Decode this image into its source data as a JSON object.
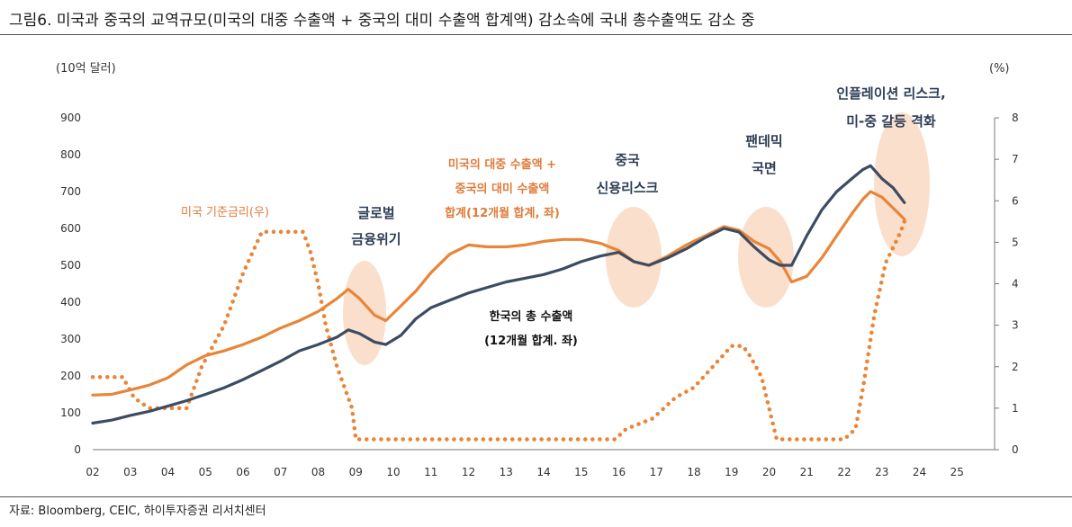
{
  "title": "그림6.   미국과 중국의 교역규모(미국의 대중 수출액 + 중국의 대미 수출액 합계액) 감소속에 국내 총수출액도 감소 중",
  "source": "자료: Bloomberg, CEIC, 하이투자증권 리서치센터",
  "colors": {
    "korea_exports": "#3d4b63",
    "us_china_trade": "#e88538",
    "fed_rate": "#e88538",
    "highlight": "#f9dcc8"
  },
  "chart_data": {
    "type": "line",
    "left_unit": "(10억 달러)",
    "right_unit": "(%)",
    "ylim_left": [
      0,
      900
    ],
    "ylim_right": [
      0,
      8
    ],
    "yticks_left": [
      "0",
      "100",
      "200",
      "300",
      "400",
      "500",
      "600",
      "700",
      "800",
      "900"
    ],
    "yticks_right": [
      "0",
      "1",
      "2",
      "3",
      "4",
      "5",
      "6",
      "7",
      "8"
    ],
    "xlim": [
      2002,
      2026
    ],
    "xticks": [
      "02",
      "03",
      "04",
      "05",
      "06",
      "07",
      "08",
      "09",
      "10",
      "11",
      "12",
      "13",
      "14",
      "15",
      "16",
      "17",
      "18",
      "19",
      "20",
      "21",
      "22",
      "23",
      "24",
      "25"
    ],
    "series": [
      {
        "name": "한국의 총 수출액 (12개월 합계. 좌)",
        "axis": "left",
        "x": [
          2002.0,
          2002.5,
          2003.0,
          2003.5,
          2004.0,
          2004.5,
          2005.0,
          2005.5,
          2006.0,
          2006.5,
          2007.0,
          2007.5,
          2008.0,
          2008.5,
          2008.8,
          2009.1,
          2009.5,
          2009.8,
          2010.2,
          2010.6,
          2011.0,
          2011.5,
          2012.0,
          2012.5,
          2013.0,
          2013.5,
          2014.0,
          2014.5,
          2015.0,
          2015.5,
          2016.0,
          2016.4,
          2016.8,
          2017.3,
          2017.8,
          2018.3,
          2018.8,
          2019.2,
          2019.6,
          2020.0,
          2020.3,
          2020.6,
          2021.0,
          2021.4,
          2021.8,
          2022.2,
          2022.5,
          2022.7,
          2023.0,
          2023.3,
          2023.6
        ],
        "values": [
          72,
          80,
          93,
          104,
          118,
          133,
          150,
          168,
          190,
          215,
          240,
          268,
          285,
          305,
          325,
          315,
          292,
          285,
          310,
          355,
          385,
          405,
          425,
          440,
          455,
          465,
          475,
          490,
          510,
          525,
          535,
          510,
          500,
          520,
          545,
          575,
          600,
          590,
          550,
          515,
          500,
          500,
          580,
          650,
          700,
          735,
          760,
          770,
          735,
          710,
          670
        ]
      },
      {
        "name": "미국의 대중 수출액 + 중국의 대미 수출액 합계(12개월 합계, 좌)",
        "axis": "left",
        "x": [
          2002.0,
          2002.5,
          2003.0,
          2003.5,
          2004.0,
          2004.5,
          2005.0,
          2005.5,
          2006.0,
          2006.5,
          2007.0,
          2007.5,
          2008.0,
          2008.5,
          2008.8,
          2009.1,
          2009.5,
          2009.8,
          2010.2,
          2010.6,
          2011.0,
          2011.5,
          2012.0,
          2012.5,
          2013.0,
          2013.5,
          2014.0,
          2014.5,
          2015.0,
          2015.5,
          2016.0,
          2016.4,
          2016.8,
          2017.3,
          2017.8,
          2018.3,
          2018.8,
          2019.2,
          2019.6,
          2020.0,
          2020.3,
          2020.6,
          2021.0,
          2021.4,
          2021.8,
          2022.2,
          2022.5,
          2022.7,
          2023.0,
          2023.3,
          2023.6
        ],
        "values": [
          148,
          150,
          162,
          175,
          195,
          230,
          255,
          268,
          285,
          305,
          330,
          350,
          375,
          410,
          435,
          410,
          365,
          350,
          390,
          430,
          480,
          530,
          555,
          550,
          550,
          555,
          565,
          570,
          570,
          560,
          540,
          510,
          500,
          525,
          555,
          580,
          605,
          595,
          565,
          545,
          510,
          455,
          470,
          520,
          580,
          640,
          680,
          700,
          685,
          655,
          625
        ]
      },
      {
        "name": "미국 기준금리(우)",
        "axis": "right",
        "style": "dotted",
        "x": [
          2002.0,
          2002.8,
          2003.1,
          2003.5,
          2003.8,
          2004.5,
          2004.9,
          2005.5,
          2006.0,
          2006.5,
          2007.6,
          2007.8,
          2008.0,
          2008.2,
          2008.5,
          2008.9,
          2009.0,
          2015.9,
          2016.2,
          2016.9,
          2017.2,
          2017.5,
          2018.0,
          2018.5,
          2019.0,
          2019.3,
          2019.5,
          2019.8,
          2020.2,
          2020.3,
          2022.0,
          2022.3,
          2022.5,
          2022.8,
          2023.1,
          2023.5,
          2023.6
        ],
        "values": [
          1.75,
          1.75,
          1.25,
          1.0,
          1.0,
          1.0,
          2.0,
          3.0,
          4.25,
          5.25,
          5.25,
          4.75,
          4.0,
          3.0,
          2.0,
          1.0,
          0.25,
          0.25,
          0.5,
          0.75,
          1.0,
          1.25,
          1.5,
          2.0,
          2.5,
          2.5,
          2.25,
          1.75,
          0.25,
          0.25,
          0.25,
          0.5,
          1.5,
          3.25,
          4.5,
          5.25,
          5.5
        ]
      }
    ],
    "annotations": [
      {
        "id": "global-crisis",
        "lines": [
          "글로벌",
          "금융위기"
        ]
      },
      {
        "id": "china-credit",
        "lines": [
          "중국",
          "신용리스크"
        ]
      },
      {
        "id": "pandemic",
        "lines": [
          "팬데믹",
          "국면"
        ]
      },
      {
        "id": "inflation",
        "lines": [
          "인플레이션 리스크,",
          "미-중 갈등 격화"
        ]
      },
      {
        "id": "trade-label",
        "lines": [
          "미국의 대중 수출액 +",
          "중국의 대미 수출액",
          "합계(12개월 합계, 좌)"
        ]
      },
      {
        "id": "korea-label",
        "lines": [
          "한국의 총 수출액",
          "(12개월 합계. 좌)"
        ]
      },
      {
        "id": "rate-label",
        "lines": [
          "미국 기준금리(우)"
        ]
      }
    ]
  }
}
